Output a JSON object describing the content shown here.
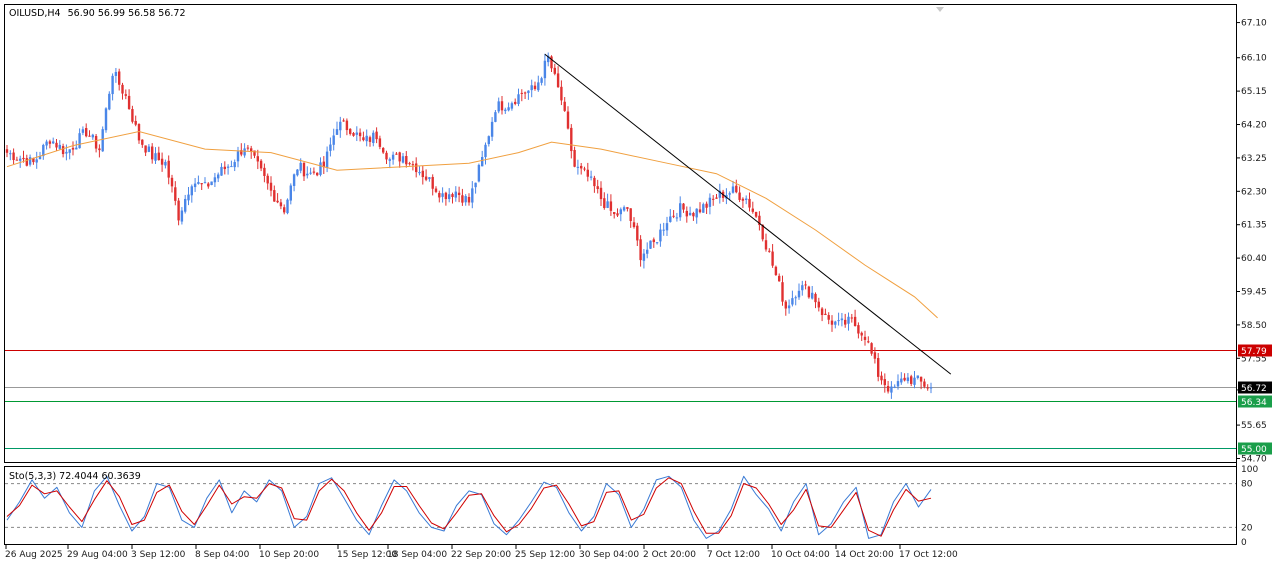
{
  "header": {
    "symbol": "OILUSD,H4",
    "ohlc": "56.90 56.99 56.58 56.72"
  },
  "indicator": {
    "label": "Sto(5,3,3) 72.4044 60.3639",
    "levels": [
      100,
      80,
      20,
      0
    ],
    "main_color": "#3a7bd5",
    "signal_color": "#d00000"
  },
  "colors": {
    "bull": "#4a86e8",
    "bear": "#e03030",
    "ma": "#f0a040",
    "trendline": "#000000",
    "line_57_79": "#cc0000",
    "line_56_34": "#009933",
    "line_55_00": "#009966",
    "price_line": "#999999"
  },
  "chart_data": [
    {
      "type": "candlestick",
      "title": "OILUSD,H4",
      "price_ticks": [
        "67.10",
        "66.10",
        "65.15",
        "64.20",
        "63.25",
        "62.30",
        "61.35",
        "60.40",
        "59.45",
        "58.50",
        "57.55",
        "56.65",
        "55.65",
        "54.70"
      ],
      "ylim": [
        54.6,
        67.6
      ],
      "x_labels": [
        "26 Aug 2025",
        "29 Aug 04:00",
        "3 Sep 12:00",
        "8 Sep 04:00",
        "10 Sep 20:00",
        "15 Sep 12:00",
        "18 Sep 04:00",
        "22 Sep 20:00",
        "25 Sep 12:00",
        "30 Sep 04:00",
        "2 Oct 20:00",
        "7 Oct 12:00",
        "10 Oct 04:00",
        "14 Oct 20:00",
        "17 Oct 12:00"
      ],
      "anchors": [
        [
          0,
          63.4
        ],
        [
          8,
          63.1
        ],
        [
          13,
          63.8
        ],
        [
          18,
          63.4
        ],
        [
          24,
          64.0
        ],
        [
          28,
          63.5
        ],
        [
          32,
          65.7
        ],
        [
          36,
          65.0
        ],
        [
          40,
          63.8
        ],
        [
          44,
          63.3
        ],
        [
          48,
          63.1
        ],
        [
          52,
          61.6
        ],
        [
          56,
          62.6
        ],
        [
          60,
          62.4
        ],
        [
          64,
          62.8
        ],
        [
          68,
          63.1
        ],
        [
          72,
          63.6
        ],
        [
          76,
          63.0
        ],
        [
          80,
          62.3
        ],
        [
          84,
          61.8
        ],
        [
          88,
          63.0
        ],
        [
          92,
          62.8
        ],
        [
          96,
          63.0
        ],
        [
          100,
          64.2
        ],
        [
          104,
          64.1
        ],
        [
          108,
          63.7
        ],
        [
          112,
          63.9
        ],
        [
          116,
          63.2
        ],
        [
          120,
          63.3
        ],
        [
          124,
          63.0
        ],
        [
          128,
          62.6
        ],
        [
          132,
          62.2
        ],
        [
          136,
          62.3
        ],
        [
          140,
          62.0
        ],
        [
          144,
          63.2
        ],
        [
          148,
          64.7
        ],
        [
          152,
          64.8
        ],
        [
          156,
          65.1
        ],
        [
          160,
          65.2
        ],
        [
          164,
          66.1
        ],
        [
          168,
          64.9
        ],
        [
          172,
          63.0
        ],
        [
          176,
          62.7
        ],
        [
          180,
          62.1
        ],
        [
          184,
          61.6
        ],
        [
          188,
          61.8
        ],
        [
          192,
          60.5
        ],
        [
          196,
          60.8
        ],
        [
          200,
          61.5
        ],
        [
          204,
          61.8
        ],
        [
          208,
          61.7
        ],
        [
          212,
          61.9
        ],
        [
          216,
          62.2
        ],
        [
          220,
          62.3
        ],
        [
          224,
          62.1
        ],
        [
          228,
          61.4
        ],
        [
          232,
          60.2
        ],
        [
          236,
          59.0
        ],
        [
          240,
          59.6
        ],
        [
          244,
          59.4
        ],
        [
          248,
          58.7
        ],
        [
          252,
          58.5
        ],
        [
          256,
          58.6
        ],
        [
          260,
          58.2
        ],
        [
          264,
          57.1
        ],
        [
          268,
          56.6
        ],
        [
          272,
          57.0
        ],
        [
          276,
          56.9
        ],
        [
          280,
          56.7
        ]
      ],
      "last_price": 56.72,
      "moving_average": [
        [
          0,
          63.0
        ],
        [
          20,
          63.6
        ],
        [
          40,
          64.0
        ],
        [
          60,
          63.5
        ],
        [
          80,
          63.4
        ],
        [
          100,
          62.9
        ],
        [
          120,
          63.0
        ],
        [
          140,
          63.1
        ],
        [
          155,
          63.4
        ],
        [
          165,
          63.7
        ],
        [
          180,
          63.5
        ],
        [
          200,
          63.1
        ],
        [
          215,
          62.8
        ],
        [
          230,
          62.1
        ],
        [
          245,
          61.2
        ],
        [
          260,
          60.2
        ],
        [
          275,
          59.3
        ],
        [
          282,
          58.7
        ]
      ],
      "trendline": {
        "from": [
          163,
          66.2
        ],
        "to": [
          286,
          57.1
        ]
      },
      "horizontal_lines": [
        {
          "price": 57.79,
          "label": "57.79"
        },
        {
          "price": 56.72,
          "label": "56.72"
        },
        {
          "price": 56.34,
          "label": "56.34"
        },
        {
          "price": 55.0,
          "label": "55.00"
        }
      ]
    },
    {
      "type": "line",
      "title": "Sto(5,3,3)",
      "ylim": [
        0,
        100
      ],
      "tick_labels": [
        "100",
        "80",
        "20",
        "0"
      ],
      "series": [
        {
          "name": "main",
          "values": [
            30,
            55,
            85,
            60,
            75,
            40,
            20,
            70,
            90,
            50,
            15,
            35,
            80,
            75,
            30,
            20,
            60,
            85,
            40,
            70,
            55,
            85,
            70,
            20,
            35,
            80,
            88,
            60,
            30,
            10,
            50,
            85,
            70,
            40,
            20,
            15,
            50,
            70,
            65,
            25,
            10,
            30,
            55,
            82,
            75,
            40,
            15,
            35,
            80,
            65,
            20,
            45,
            85,
            90,
            75,
            30,
            5,
            15,
            45,
            90,
            65,
            45,
            15,
            55,
            80,
            10,
            25,
            55,
            75,
            5,
            10,
            55,
            80,
            48,
            72
          ]
        },
        {
          "name": "signal",
          "values": [
            35,
            50,
            78,
            66,
            70,
            48,
            28,
            58,
            84,
            62,
            24,
            30,
            68,
            78,
            42,
            24,
            50,
            78,
            52,
            62,
            60,
            80,
            74,
            32,
            30,
            70,
            86,
            70,
            40,
            16,
            40,
            76,
            76,
            50,
            26,
            18,
            40,
            64,
            66,
            36,
            14,
            24,
            46,
            74,
            78,
            52,
            22,
            28,
            68,
            70,
            30,
            38,
            74,
            88,
            80,
            42,
            12,
            12,
            36,
            80,
            74,
            52,
            24,
            44,
            72,
            22,
            20,
            44,
            68,
            16,
            8,
            44,
            72,
            56,
            60
          ]
        }
      ]
    }
  ]
}
